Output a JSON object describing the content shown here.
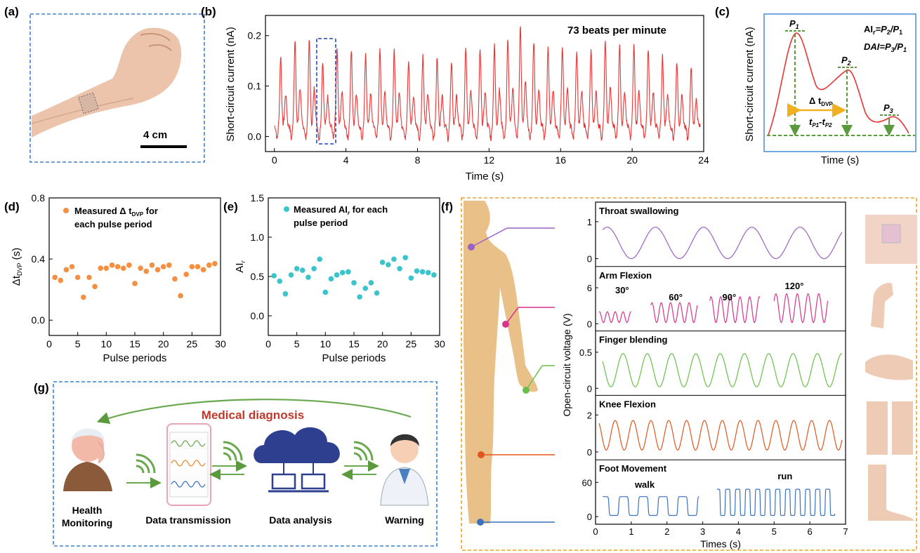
{
  "panels": {
    "a": {
      "label": "(a)",
      "scale_label": "4 cm"
    },
    "b": {
      "label": "(b)",
      "annotation": "73 beats per minute"
    },
    "c": {
      "label": "(c)",
      "ylabel": "Short-circuit current (nA)",
      "xlabel": "Time (s)",
      "p1": "P",
      "p1sub": "1",
      "p2": "P",
      "p2sub": "2",
      "p3": "P",
      "p3sub": "3",
      "eq_ai": "AI",
      "eq_ai_rest": "=P",
      "eq_dai": "DAI=P",
      "delta": "Δ t",
      "delta_sub": "DVP",
      "tp": "t",
      "tp_mid": "-t"
    },
    "d": {
      "label": "(d)",
      "legend": "Measured Δ t",
      "legend_sub": "DVP",
      "legend_rest": " for",
      "legend_line2": "each pulse period"
    },
    "e": {
      "label": "(e)",
      "legend": "Measured AI",
      "legend_sub": "r",
      "legend_rest": " for each",
      "legend_line2": "pulse period"
    },
    "f": {
      "label": "(f)",
      "ylabel": "Open-circuit voltage (V)",
      "xlabel": "Times (s)",
      "walk": "walk",
      "run": "run"
    },
    "g": {
      "label": "(g)",
      "title": "Medical diagnosis",
      "steps": [
        "Health",
        "Monitoring",
        "Data transmission",
        "Data analysis",
        "Warning"
      ]
    }
  },
  "colors": {
    "red": "#e83535",
    "orange": "#f59042",
    "teal": "#3cc4cc",
    "purple": "#9a62c7",
    "magenta": "#d8358c",
    "green": "#68c04a",
    "darkorange": "#e0561f",
    "blue": "#3a72c2",
    "dash_blue": "#3b82d6",
    "dash_orange": "#e8a628",
    "skin": "#e9c087"
  },
  "chart_data": [
    {
      "panel": "b",
      "type": "line",
      "title": "",
      "xlabel": "Time (s)",
      "ylabel": "Short-circuit current (nA)",
      "xlim": [
        -0.5,
        24
      ],
      "ylim": [
        -0.03,
        0.24
      ],
      "xticks": [
        0,
        4,
        8,
        12,
        16,
        20,
        24
      ],
      "yticks": [
        0.0,
        0.1,
        0.2
      ],
      "beats": [
        [
          0.35,
          0.14
        ],
        [
          1.15,
          0.17
        ],
        [
          1.95,
          0.17
        ],
        [
          2.7,
          0.13
        ],
        [
          3.5,
          0.15
        ],
        [
          4.3,
          0.15
        ],
        [
          5.1,
          0.14
        ],
        [
          5.9,
          0.15
        ],
        [
          6.7,
          0.15
        ],
        [
          7.5,
          0.13
        ],
        [
          8.3,
          0.14
        ],
        [
          9.1,
          0.14
        ],
        [
          9.9,
          0.13
        ],
        [
          10.7,
          0.16
        ],
        [
          11.5,
          0.15
        ],
        [
          12.3,
          0.16
        ],
        [
          13.05,
          0.17
        ],
        [
          13.75,
          0.2
        ],
        [
          14.5,
          0.17
        ],
        [
          15.3,
          0.16
        ],
        [
          16.1,
          0.16
        ],
        [
          16.9,
          0.15
        ],
        [
          17.7,
          0.15
        ],
        [
          18.5,
          0.17
        ],
        [
          19.3,
          0.16
        ],
        [
          20.1,
          0.16
        ],
        [
          20.9,
          0.15
        ],
        [
          21.7,
          0.14
        ],
        [
          22.5,
          0.13
        ],
        [
          23.3,
          0.12
        ]
      ]
    },
    {
      "panel": "d",
      "type": "scatter",
      "xlabel": "Pulse periods",
      "ylabel": "Δt",
      "ylabel_sub": "DVP",
      "ylabel_unit": " (s)",
      "xlim": [
        0,
        30
      ],
      "ylim": [
        -0.1,
        0.8
      ],
      "xticks": [
        0,
        5,
        10,
        15,
        20,
        25,
        30
      ],
      "yticks": [
        0.0,
        0.4,
        0.8
      ],
      "x": [
        1,
        2,
        3,
        4,
        5,
        6,
        7,
        8,
        9,
        10,
        11,
        12,
        13,
        14,
        15,
        16,
        17,
        18,
        19,
        20,
        21,
        22,
        23,
        24,
        25,
        26,
        27,
        28,
        29
      ],
      "y": [
        0.28,
        0.26,
        0.33,
        0.35,
        0.28,
        0.15,
        0.28,
        0.22,
        0.34,
        0.34,
        0.36,
        0.35,
        0.34,
        0.36,
        0.24,
        0.34,
        0.32,
        0.36,
        0.33,
        0.35,
        0.36,
        0.27,
        0.16,
        0.3,
        0.35,
        0.35,
        0.33,
        0.36,
        0.37
      ]
    },
    {
      "panel": "e",
      "type": "scatter",
      "xlabel": "Pulse periods",
      "ylabel": "AI",
      "ylabel_sub": "r",
      "xlim": [
        0,
        30
      ],
      "ylim": [
        -0.25,
        1.5
      ],
      "xticks": [
        0,
        5,
        10,
        15,
        20,
        25,
        30
      ],
      "yticks": [
        0.0,
        0.5,
        1.0,
        1.5
      ],
      "x": [
        1,
        2,
        3,
        4,
        5,
        6,
        7,
        8,
        9,
        10,
        11,
        12,
        13,
        14,
        15,
        16,
        17,
        18,
        19,
        20,
        21,
        22,
        23,
        24,
        25,
        26,
        27,
        28,
        29
      ],
      "y": [
        0.51,
        0.44,
        0.28,
        0.52,
        0.6,
        0.58,
        0.49,
        0.6,
        0.72,
        0.3,
        0.47,
        0.52,
        0.55,
        0.56,
        0.42,
        0.24,
        0.35,
        0.42,
        0.29,
        0.68,
        0.65,
        0.72,
        0.6,
        0.74,
        0.48,
        0.57,
        0.56,
        0.55,
        0.52
      ]
    },
    {
      "panel": "f",
      "type": "line",
      "subplots": [
        {
          "name": "Throat swallowing",
          "ylim": [
            -0.1,
            1.15
          ],
          "yticks": [
            0,
            1
          ],
          "color": "#9a62c7",
          "segments": [
            {
              "x0": 0.2,
              "x1": 6.9,
              "period": 1.35,
              "peak": 0.85,
              "base": 0.0,
              "phase": 0.55
            }
          ]
        },
        {
          "name": "Arm Flexion",
          "ylim": [
            -0.5,
            7.2
          ],
          "yticks": [
            0,
            6
          ],
          "color": "#d8358c",
          "labels": [
            "30°",
            "60°",
            "90°",
            "120°"
          ],
          "segments": [
            {
              "x0": 0.1,
              "x1": 1.0,
              "period": 0.22,
              "peak": 2.0,
              "base": 0.2,
              "phase": 0.1
            },
            {
              "x0": 1.55,
              "x1": 2.85,
              "period": 0.26,
              "peak": 3.5,
              "base": 0.2,
              "phase": 0.1
            },
            {
              "x0": 3.2,
              "x1": 4.6,
              "period": 0.27,
              "peak": 4.5,
              "base": 0.2,
              "phase": 0.1
            },
            {
              "x0": 5.0,
              "x1": 6.5,
              "period": 0.3,
              "peak": 5.0,
              "base": 0.2,
              "phase": 0.1
            }
          ]
        },
        {
          "name": "Finger blending",
          "ylim": [
            -0.04,
            0.6
          ],
          "yticks": [
            0.0,
            0.5
          ],
          "color": "#68c04a",
          "segments": [
            {
              "x0": 0.2,
              "x1": 6.9,
              "period": 0.68,
              "peak": 0.48,
              "base": 0.02,
              "phase": 0.45
            }
          ]
        },
        {
          "name": "Knee Flexion",
          "ylim": [
            -0.2,
            2.3
          ],
          "yticks": [
            0,
            2
          ],
          "color": "#e0561f",
          "segments": [
            {
              "x0": 0.1,
              "x1": 6.9,
              "period": 0.5,
              "peak": 1.7,
              "base": 0.1,
              "phase": 0.3
            }
          ]
        },
        {
          "name": "Foot Movement",
          "ylim": [
            -6,
            75
          ],
          "yticks": [
            0,
            60
          ],
          "color": "#3a72c2",
          "segments": [
            {
              "x0": 0.2,
              "x1": 2.9,
              "period": 0.55,
              "peak": 35,
              "base": 2,
              "phase": 0.1,
              "square": true
            },
            {
              "x0": 3.4,
              "x1": 6.7,
              "period": 0.28,
              "peak": 48,
              "base": 2,
              "phase": 0.05,
              "square": true
            }
          ]
        }
      ],
      "xlim": [
        0,
        7
      ],
      "xticks": [
        0,
        1,
        2,
        3,
        4,
        5,
        6,
        7
      ]
    }
  ]
}
